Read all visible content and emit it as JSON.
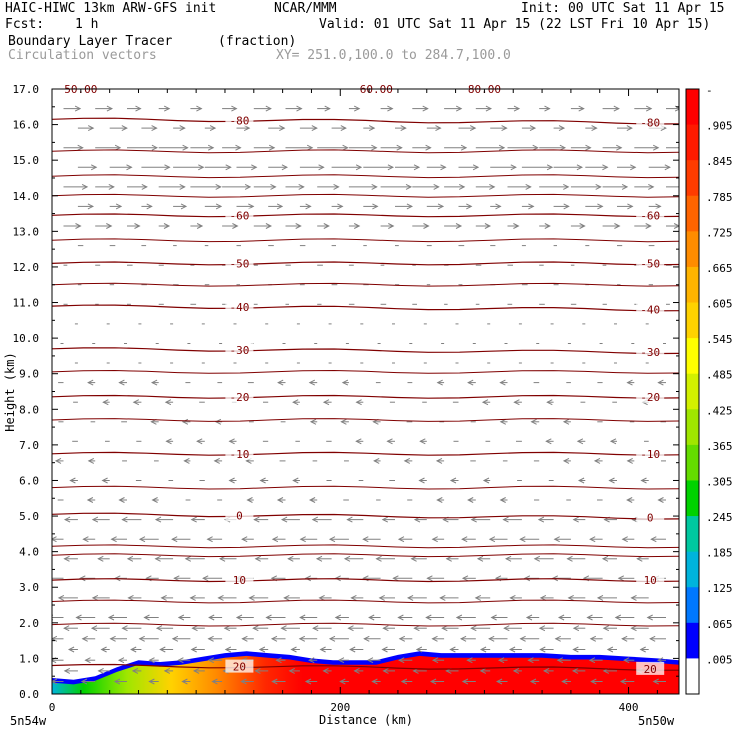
{
  "header": {
    "model": "HAIC-HIWC 13km ARW-GFS init",
    "org": "NCAR/MMM",
    "init": "Init: 00 UTC Sat 11 Apr 15",
    "fcst_label": "Fcst:",
    "fcst_value": "1 h",
    "valid": "Valid: 01 UTC Sat 11 Apr 15 (22 LST Fri 10 Apr 15)",
    "field_name": "Boundary Layer Tracer",
    "field_units": "(fraction)",
    "vector_name": "Circulation vectors",
    "xy_range": "XY= 251.0,100.0 to 284.7,100.0"
  },
  "colors": {
    "contour": "#800000",
    "vector": "#808080",
    "frame": "#000000"
  },
  "chart_data": {
    "type": "heatmap",
    "title": "Boundary Layer Tracer (fraction)",
    "xlabel": "Distance (km)",
    "ylabel": "Height (km)",
    "xlim": [
      0,
      435
    ],
    "ylim": [
      0,
      17
    ],
    "x_ticks": [
      0,
      200,
      400
    ],
    "x_tick_labels": [
      "0",
      "200",
      "400"
    ],
    "y_ticks": [
      0,
      1,
      2,
      3,
      4,
      5,
      6,
      7,
      8,
      9,
      10,
      11,
      12,
      13,
      14,
      15,
      16,
      17
    ],
    "y_tick_labels": [
      "0.0",
      "1.0",
      "2.0",
      "3.0",
      "4.0",
      "5.0",
      "6.0",
      "7.0",
      "8.0",
      "9.0",
      "10.0",
      "11.0",
      "12.0",
      "13.0",
      "14.0",
      "15.0",
      "16.0",
      "17.0"
    ],
    "x_endpoint_labels": [
      "5n54w",
      "5n50w"
    ],
    "colorbar_labels": [
      "-",
      ".905",
      ".845",
      ".785",
      ".725",
      ".665",
      ".605",
      ".545",
      ".485",
      ".425",
      ".365",
      ".305",
      ".245",
      ".185",
      ".125",
      ".065",
      ".005"
    ],
    "colorbar_colors": [
      "#ff0000",
      "#ff1a00",
      "#ff3c00",
      "#ff6400",
      "#ff8c00",
      "#ffb400",
      "#ffd200",
      "#ffff00",
      "#d2f000",
      "#a0e600",
      "#64dc00",
      "#00d200",
      "#00c8a0",
      "#00b4dc",
      "#0078ff",
      "#0000ff",
      "#ffffff"
    ],
    "tracer_profile": {
      "x": [
        0,
        15,
        30,
        45,
        60,
        75,
        90,
        105,
        120,
        135,
        150,
        165,
        180,
        195,
        210,
        225,
        240,
        255,
        270,
        285,
        300,
        320,
        340,
        360,
        380,
        400,
        420,
        435
      ],
      "top": [
        0.45,
        0.4,
        0.5,
        0.75,
        0.95,
        0.9,
        0.95,
        1.05,
        1.15,
        1.2,
        1.15,
        1.1,
        1.0,
        0.95,
        0.95,
        0.95,
        1.1,
        1.2,
        1.15,
        1.15,
        1.15,
        1.15,
        1.15,
        1.1,
        1.1,
        1.05,
        1.0,
        0.95
      ]
    },
    "isotherms": [
      {
        "value": 20,
        "y": [
          0.8,
          0.7
        ]
      },
      {
        "value": 10,
        "y": [
          3.2,
          3.2
        ]
      },
      {
        "value": 0,
        "y": [
          5.05,
          4.95
        ]
      },
      {
        "value": -10,
        "y": [
          6.75,
          6.75
        ]
      },
      {
        "value": -20,
        "y": [
          8.35,
          8.35
        ]
      },
      {
        "value": -30,
        "y": [
          9.7,
          9.6
        ]
      },
      {
        "value": -40,
        "y": [
          10.9,
          10.8
        ]
      },
      {
        "value": -50,
        "y": [
          12.1,
          12.1
        ]
      },
      {
        "value": -60,
        "y": [
          13.45,
          13.45
        ]
      },
      {
        "value": -80,
        "y": [
          16.15,
          16.05
        ]
      }
    ],
    "extra_contours_y": [
      1.95,
      2.6,
      3.9,
      4.15,
      5.8,
      7.7,
      9.05,
      11.5,
      12.75,
      14.0,
      14.55,
      15.25
    ],
    "top_partial_labels": [
      "50.00",
      "60.00",
      "80.00"
    ],
    "top_partial_label_x": [
      20,
      225,
      300
    ]
  }
}
